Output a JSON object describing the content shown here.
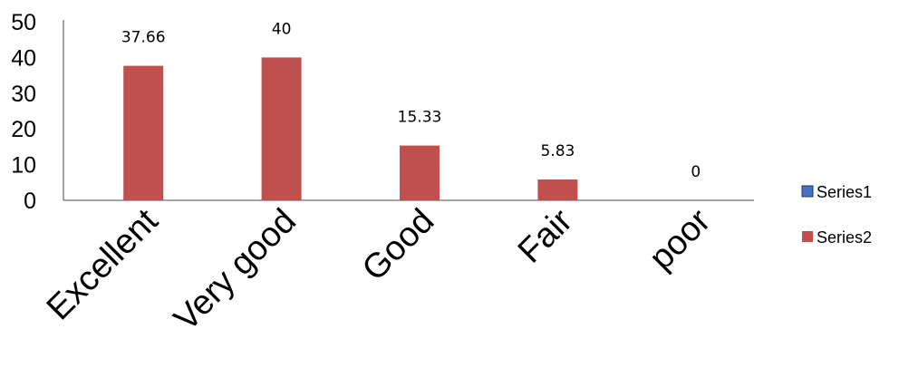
{
  "chart_data": {
    "type": "bar",
    "title": "",
    "xlabel": "",
    "ylabel": "",
    "categories": [
      "Excellent",
      "Very good",
      "Good",
      "Fair",
      "poor"
    ],
    "ylim": [
      0,
      50
    ],
    "yticks": [
      "0",
      "10",
      "20",
      "30",
      "40",
      "50"
    ],
    "grid": false,
    "legend_position": "right",
    "series": [
      {
        "name": "Series1",
        "color": "#4472C4",
        "values": [
          null,
          null,
          null,
          null,
          null
        ]
      },
      {
        "name": "Series2",
        "color": "#C0504D",
        "values": [
          37.66,
          40,
          15.33,
          5.83,
          0
        ]
      }
    ],
    "data_labels": [
      "37.66",
      "40",
      "15.33",
      "5.83",
      "0"
    ]
  }
}
